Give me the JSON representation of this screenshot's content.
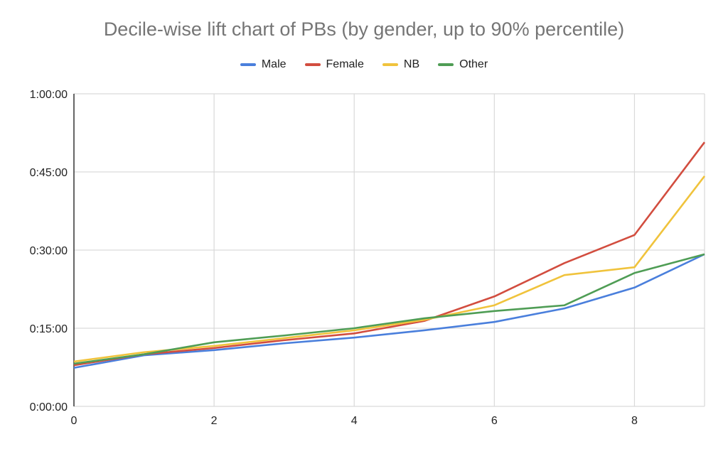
{
  "chart_data": {
    "type": "line",
    "title": "Decile-wise lift chart of PBs (by gender, up to 90% percentile)",
    "xlabel": "",
    "ylabel": "",
    "x": [
      0,
      1,
      2,
      3,
      4,
      5,
      6,
      7,
      8,
      9
    ],
    "xlim": [
      0,
      9
    ],
    "x_ticks": [
      "0",
      "2",
      "4",
      "6",
      "8"
    ],
    "ylim_minutes": [
      0,
      60
    ],
    "y_ticks": [
      "0:00:00",
      "0:15:00",
      "0:30:00",
      "0:45:00",
      "1:00:00"
    ],
    "grid": true,
    "legend_position": "top",
    "series": [
      {
        "name": "Male",
        "color": "#4a7fdc",
        "values_minutes": [
          7.4,
          9.8,
          10.8,
          12.1,
          13.2,
          14.6,
          16.2,
          18.8,
          22.8,
          29.2
        ]
      },
      {
        "name": "Female",
        "color": "#d24d3f",
        "values_minutes": [
          7.9,
          10.0,
          11.2,
          12.7,
          14.0,
          16.4,
          21.1,
          27.5,
          32.9,
          50.7
        ]
      },
      {
        "name": "NB",
        "color": "#f0c33c",
        "values_minutes": [
          8.6,
          10.4,
          11.6,
          13.1,
          14.6,
          16.6,
          19.4,
          25.2,
          26.7,
          44.2
        ]
      },
      {
        "name": "Other",
        "color": "#4f9d55",
        "values_minutes": [
          8.2,
          10.0,
          12.3,
          13.6,
          15.0,
          16.9,
          18.3,
          19.4,
          25.6,
          29.2
        ]
      }
    ]
  }
}
